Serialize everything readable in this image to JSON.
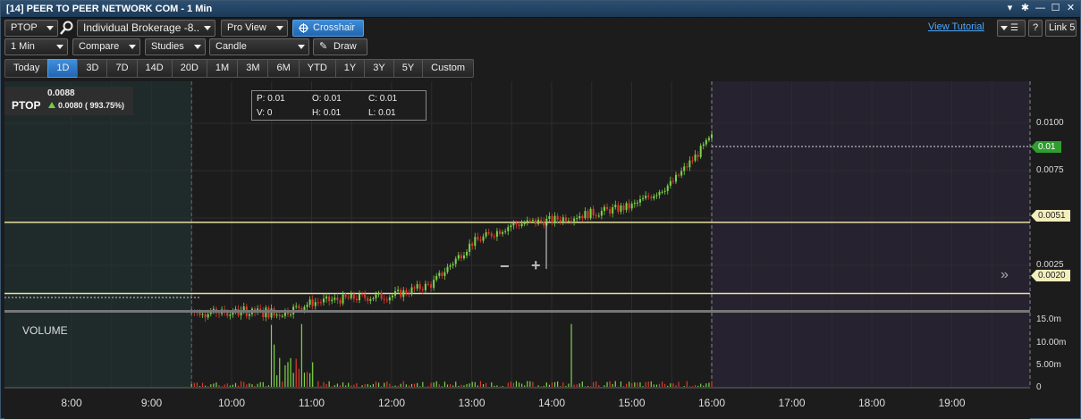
{
  "window": {
    "title": "[14] PEER TO PEER NETWORK COM - 1 Min",
    "controls": [
      "pin-icon",
      "gear-icon",
      "minimize-icon",
      "maximize-icon",
      "close-icon"
    ]
  },
  "toolbar1": {
    "symbol": "PTOP",
    "account": "Individual Brokerage -8..",
    "view": "Pro View",
    "crosshair": "Crosshair",
    "view_tutorial": "View Tutorial",
    "help": "?",
    "link": "Link 5"
  },
  "toolbar2": {
    "interval": "1 Min",
    "compare": "Compare",
    "studies": "Studies",
    "chart_type": "Candle",
    "draw": "Draw"
  },
  "ranges": [
    "Today",
    "1D",
    "3D",
    "7D",
    "14D",
    "20D",
    "1M",
    "3M",
    "6M",
    "YTD",
    "1Y",
    "3Y",
    "5Y",
    "Custom"
  ],
  "active_range": "1D",
  "quote": {
    "symbol": "PTOP",
    "last": "0.0088",
    "change": "0.0080 ( 993.75%)",
    "direction": "up"
  },
  "ohlc": {
    "p": "P: 0.01",
    "o": "O: 0.01",
    "c": "C: 0.01",
    "v": "V: 0",
    "h": "H: 0.01",
    "l": "L: 0.01"
  },
  "price_axis": [
    "0.0100",
    "0.0075",
    "0.0025"
  ],
  "price_tags": {
    "last": "0.01",
    "line1": "0.0051",
    "line2": "0.0020"
  },
  "volume_axis": [
    "15.0m",
    "10.00m",
    "5.00m",
    "0"
  ],
  "volume_label": "VOLUME",
  "zoom": {
    "minus": "−",
    "plus": "+"
  },
  "time_axis": [
    "8:00",
    "9:00",
    "10:00",
    "11:00",
    "12:00",
    "13:00",
    "14:00",
    "15:00",
    "16:00",
    "17:00",
    "18:00",
    "19:00"
  ],
  "colors": {
    "up": "#7cd44a",
    "down": "#e03a2a",
    "hline": "#e8e0a0",
    "last_tag": "#2f9e2f",
    "premarket_bg": "#1f2b2b",
    "afterhours_bg": "#262230",
    "accent": "#2b74c4"
  },
  "chart_data": {
    "type": "candlestick",
    "x_unit": "time",
    "x": [
      "9:30",
      "10:00",
      "10:30",
      "11:00",
      "11:30",
      "12:00",
      "12:30",
      "13:00",
      "13:30",
      "14:00",
      "14:30",
      "15:00",
      "15:30",
      "16:00"
    ],
    "close": [
      0.0012,
      0.0009,
      0.001,
      0.0016,
      0.0018,
      0.0019,
      0.0024,
      0.0042,
      0.005,
      0.0052,
      0.0055,
      0.0058,
      0.0068,
      0.0088
    ],
    "volume_m": [
      0.5,
      1.0,
      0.6,
      15.0,
      8.0,
      4.0,
      3.0,
      3.5,
      2.5,
      15.0,
      2.0,
      2.5,
      2.0,
      1.5
    ],
    "hlines": [
      0.0051,
      0.002
    ],
    "last_value": 0.01,
    "ylim": [
      0.0,
      0.0115
    ],
    "volume_ylim": [
      0,
      16
    ]
  }
}
